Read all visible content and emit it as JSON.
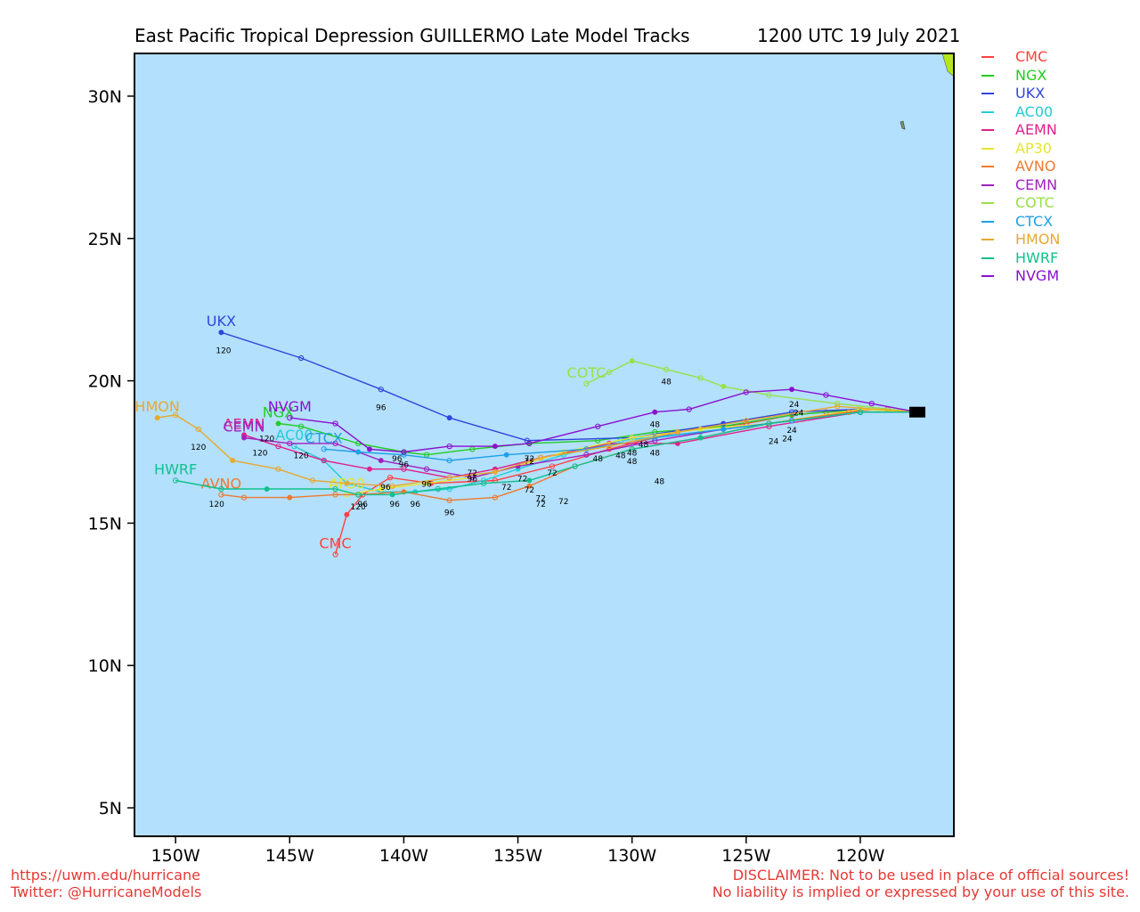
{
  "title": {
    "left": "East Pacific Tropical Depression GUILLERMO Late Model Tracks",
    "right": "1200 UTC 19 July 2021"
  },
  "axes": {
    "x_ticks": [
      "150W",
      "145W",
      "140W",
      "135W",
      "130W",
      "125W",
      "120W"
    ],
    "y_ticks": [
      "30N",
      "25N",
      "20N",
      "15N",
      "10N",
      "5N"
    ]
  },
  "footer": {
    "left_line1": "https://uwm.edu/hurricane",
    "left_line2": "Twitter: @HurricaneModels",
    "right_line1": "DISCLAIMER: Not to be used in place of official sources!",
    "right_line2": "No liability is implied or expressed by your use of this site."
  },
  "colors": {
    "ocean": "#b3e0fc",
    "land": "#b5e61d"
  },
  "chart_data": {
    "type": "map",
    "map_extent": {
      "lon": [
        -151.8,
        -115.9
      ],
      "lat": [
        4.0,
        31.5
      ]
    },
    "grid": false,
    "legend_placement": "right",
    "initial_position": {
      "lon": -117.5,
      "lat": 18.9
    },
    "models": [
      {
        "name": "CMC",
        "color": "#ff4040",
        "track": [
          [
            -117.5,
            18.9
          ],
          [
            -118.8,
            19.0
          ],
          [
            -121.5,
            18.9
          ],
          [
            -123.0,
            18.8
          ],
          [
            -125.0,
            18.5
          ],
          [
            -128.0,
            18.2
          ],
          [
            -131.0,
            17.6
          ],
          [
            -133.5,
            17.0
          ],
          [
            -136.0,
            16.5
          ],
          [
            -138.8,
            16.4
          ],
          [
            -140.6,
            16.6
          ],
          [
            -141.8,
            16.0
          ],
          [
            -142.5,
            15.3
          ],
          [
            -143.0,
            13.9
          ]
        ],
        "labels": []
      },
      {
        "name": "NGX",
        "color": "#22cc22",
        "track": [
          [
            -117.5,
            18.9
          ],
          [
            -120.0,
            19.0
          ],
          [
            -123.0,
            18.8
          ],
          [
            -126.0,
            18.4
          ],
          [
            -129.0,
            18.2
          ],
          [
            -131.5,
            17.9
          ],
          [
            -134.5,
            17.8
          ],
          [
            -137.0,
            17.6
          ],
          [
            -139.0,
            17.4
          ],
          [
            -140.0,
            17.5
          ],
          [
            -142.0,
            17.8
          ],
          [
            -144.5,
            18.4
          ],
          [
            -145.5,
            18.5
          ]
        ],
        "labels": []
      },
      {
        "name": "UKX",
        "color": "#3344dd",
        "track": [
          [
            -117.5,
            18.9
          ],
          [
            -120.0,
            19.0
          ],
          [
            -123.0,
            18.9
          ],
          [
            -126.0,
            18.5
          ],
          [
            -130.0,
            18.0
          ],
          [
            -134.6,
            17.9
          ],
          [
            -138.0,
            18.7
          ],
          [
            -141.0,
            19.7
          ],
          [
            -144.5,
            20.8
          ],
          [
            -148.0,
            21.7
          ]
        ],
        "labels": [
          [
            "96",
            -141.0,
            19.1
          ],
          [
            "120",
            -147.9,
            21.1
          ]
        ]
      },
      {
        "name": "AC00",
        "color": "#22ccd6",
        "track": [
          [
            -117.5,
            18.9
          ],
          [
            -120.0,
            18.9
          ],
          [
            -124.0,
            18.5
          ],
          [
            -127.0,
            18.2
          ],
          [
            -130.5,
            17.9
          ],
          [
            -133.0,
            17.4
          ],
          [
            -135.0,
            16.9
          ],
          [
            -136.5,
            16.5
          ],
          [
            -138.0,
            16.2
          ],
          [
            -139.5,
            16.1
          ],
          [
            -141.0,
            16.1
          ],
          [
            -142.5,
            16.4
          ],
          [
            -143.5,
            17.2
          ],
          [
            -144.8,
            17.7
          ]
        ],
        "labels": []
      },
      {
        "name": "AEMN",
        "color": "#e0208c",
        "track": [
          [
            -117.5,
            18.9
          ],
          [
            -120.0,
            18.9
          ],
          [
            -124.0,
            18.4
          ],
          [
            -128.0,
            17.8
          ],
          [
            -131.0,
            17.8
          ],
          [
            -134.0,
            17.3
          ],
          [
            -136.0,
            16.9
          ],
          [
            -138.0,
            16.6
          ],
          [
            -140.0,
            16.9
          ],
          [
            -141.5,
            16.9
          ],
          [
            -143.5,
            17.2
          ],
          [
            -145.5,
            17.7
          ],
          [
            -147.0,
            18.1
          ]
        ],
        "labels": [
          [
            "120",
            -146.3,
            17.5
          ]
        ]
      },
      {
        "name": "AP30",
        "color": "#e6e62e",
        "track": [
          [
            -117.5,
            18.9
          ],
          [
            -120.0,
            19.0
          ],
          [
            -124.0,
            18.5
          ],
          [
            -127.0,
            18.3
          ],
          [
            -130.0,
            18.0
          ],
          [
            -133.0,
            17.5
          ],
          [
            -135.0,
            17.0
          ],
          [
            -137.0,
            16.6
          ],
          [
            -139.0,
            16.4
          ],
          [
            -141.0,
            16.2
          ],
          [
            -142.5,
            16.0
          ]
        ],
        "labels": []
      },
      {
        "name": "AVNO",
        "color": "#ee7a30",
        "track": [
          [
            -117.5,
            18.9
          ],
          [
            -120.5,
            18.9
          ],
          [
            -124.0,
            18.5
          ],
          [
            -127.0,
            18.0
          ],
          [
            -130.0,
            17.6
          ],
          [
            -132.5,
            17.0
          ],
          [
            -134.5,
            16.3
          ],
          [
            -136.0,
            15.9
          ],
          [
            -138.0,
            15.8
          ],
          [
            -140.0,
            16.1
          ],
          [
            -142.0,
            16.0
          ],
          [
            -143.0,
            16.0
          ],
          [
            -145.0,
            15.9
          ],
          [
            -147.0,
            15.9
          ],
          [
            -148.0,
            16.0
          ]
        ],
        "labels": [
          [
            "72",
            -134.0,
            15.9
          ],
          [
            "96",
            -138.0,
            15.4
          ],
          [
            "120",
            -142.0,
            15.6
          ],
          [
            "120",
            -148.2,
            15.7
          ]
        ]
      },
      {
        "name": "CEMN",
        "color": "#a020c0",
        "track": [
          [
            -117.5,
            18.9
          ],
          [
            -120.0,
            18.9
          ],
          [
            -123.0,
            18.6
          ],
          [
            -126.0,
            18.3
          ],
          [
            -129.0,
            17.9
          ],
          [
            -132.0,
            17.4
          ],
          [
            -135.0,
            17.0
          ],
          [
            -137.0,
            16.6
          ],
          [
            -139.0,
            16.9
          ],
          [
            -141.0,
            17.2
          ],
          [
            -143.0,
            17.8
          ],
          [
            -145.0,
            17.8
          ],
          [
            -147.0,
            18.0
          ]
        ],
        "labels": [
          [
            "96",
            -140.3,
            17.3
          ],
          [
            "120",
            -144.5,
            17.4
          ],
          [
            "120",
            -146.0,
            18.0
          ]
        ]
      },
      {
        "name": "COTC",
        "color": "#99e046",
        "track": [
          [
            -117.5,
            18.9
          ],
          [
            -121.0,
            19.2
          ],
          [
            -124.0,
            19.5
          ],
          [
            -126.0,
            19.8
          ],
          [
            -127.0,
            20.1
          ],
          [
            -128.5,
            20.4
          ],
          [
            -130.0,
            20.7
          ],
          [
            -131.0,
            20.3
          ],
          [
            -132.0,
            19.9
          ]
        ],
        "labels": [
          [
            "48",
            -128.5,
            20.0
          ]
        ]
      },
      {
        "name": "CTCX",
        "color": "#1ea0e6",
        "track": [
          [
            -117.5,
            18.9
          ],
          [
            -120.0,
            18.9
          ],
          [
            -123.0,
            18.6
          ],
          [
            -126.0,
            18.3
          ],
          [
            -129.0,
            18.0
          ],
          [
            -132.0,
            17.6
          ],
          [
            -135.5,
            17.4
          ],
          [
            -138.0,
            17.2
          ],
          [
            -140.0,
            17.4
          ],
          [
            -142.0,
            17.5
          ],
          [
            -143.5,
            17.6
          ]
        ],
        "labels": [
          [
            "72",
            -134.5,
            17.2
          ]
        ]
      },
      {
        "name": "HMON",
        "color": "#e8a830",
        "track": [
          [
            -117.5,
            18.9
          ],
          [
            -121.0,
            19.1
          ],
          [
            -125.0,
            18.6
          ],
          [
            -128.0,
            18.2
          ],
          [
            -131.0,
            17.7
          ],
          [
            -134.0,
            17.3
          ],
          [
            -136.0,
            16.8
          ],
          [
            -138.0,
            16.6
          ],
          [
            -140.5,
            16.3
          ],
          [
            -142.5,
            16.4
          ],
          [
            -144.0,
            16.5
          ],
          [
            -145.5,
            16.9
          ],
          [
            -147.5,
            17.2
          ],
          [
            -149.0,
            18.3
          ],
          [
            -150.0,
            18.8
          ],
          [
            -150.8,
            18.7
          ]
        ],
        "labels": [
          [
            "120",
            -149.0,
            17.7
          ]
        ]
      },
      {
        "name": "HWRF",
        "color": "#10c08c",
        "track": [
          [
            -117.5,
            18.9
          ],
          [
            -120.0,
            18.9
          ],
          [
            -124.0,
            18.5
          ],
          [
            -127.0,
            18.0
          ],
          [
            -130.0,
            17.6
          ],
          [
            -132.5,
            17.0
          ],
          [
            -134.5,
            16.5
          ],
          [
            -136.5,
            16.4
          ],
          [
            -138.5,
            16.2
          ],
          [
            -140.5,
            16.0
          ],
          [
            -142.0,
            16.0
          ],
          [
            -143.0,
            16.2
          ],
          [
            -146.0,
            16.2
          ],
          [
            -148.0,
            16.2
          ],
          [
            -150.0,
            16.5
          ]
        ],
        "labels": [
          [
            "96",
            -141.8,
            15.7
          ],
          [
            "96",
            -140.4,
            15.7
          ]
        ]
      },
      {
        "name": "NVGM",
        "color": "#8a10d0",
        "track": [
          [
            -117.5,
            18.9
          ],
          [
            -119.5,
            19.2
          ],
          [
            -121.5,
            19.5
          ],
          [
            -123.0,
            19.7
          ],
          [
            -125.0,
            19.6
          ],
          [
            -127.5,
            19.0
          ],
          [
            -129.0,
            18.9
          ],
          [
            -131.5,
            18.4
          ],
          [
            -134.5,
            17.8
          ],
          [
            -136.0,
            17.7
          ],
          [
            -138.0,
            17.7
          ],
          [
            -140.0,
            17.5
          ],
          [
            -141.5,
            17.6
          ],
          [
            -143.0,
            18.5
          ],
          [
            -145.0,
            18.7
          ]
        ],
        "labels": [
          [
            "24",
            -122.9,
            19.2
          ],
          [
            "48",
            -129.0,
            18.5
          ],
          [
            "72",
            -134.5,
            17.3
          ]
        ]
      }
    ],
    "extra_labels": [
      [
        "24",
        -122.7,
        18.9
      ],
      [
        "24",
        -123.0,
        18.3
      ],
      [
        "24",
        -123.2,
        18.0
      ],
      [
        "24",
        -123.8,
        17.9
      ],
      [
        "48",
        -130.0,
        17.5
      ],
      [
        "48",
        -129.5,
        17.8
      ],
      [
        "48",
        -129.0,
        17.5
      ],
      [
        "48",
        -130.5,
        17.4
      ],
      [
        "48",
        -131.5,
        17.3
      ],
      [
        "48",
        -130.0,
        17.2
      ],
      [
        "48",
        -128.8,
        16.5
      ],
      [
        "72",
        -137.0,
        16.8
      ],
      [
        "72",
        -135.5,
        16.3
      ],
      [
        "72",
        -134.5,
        16.2
      ],
      [
        "72",
        -134.0,
        15.7
      ],
      [
        "72",
        -133.0,
        15.8
      ],
      [
        "72",
        -134.8,
        16.6
      ],
      [
        "72",
        -133.5,
        16.8
      ],
      [
        "96",
        -140.0,
        17.1
      ],
      [
        "96",
        -139.5,
        15.7
      ],
      [
        "96",
        -139.0,
        16.4
      ],
      [
        "96",
        -137.0,
        16.6
      ],
      [
        "96",
        -140.8,
        16.3
      ]
    ]
  }
}
